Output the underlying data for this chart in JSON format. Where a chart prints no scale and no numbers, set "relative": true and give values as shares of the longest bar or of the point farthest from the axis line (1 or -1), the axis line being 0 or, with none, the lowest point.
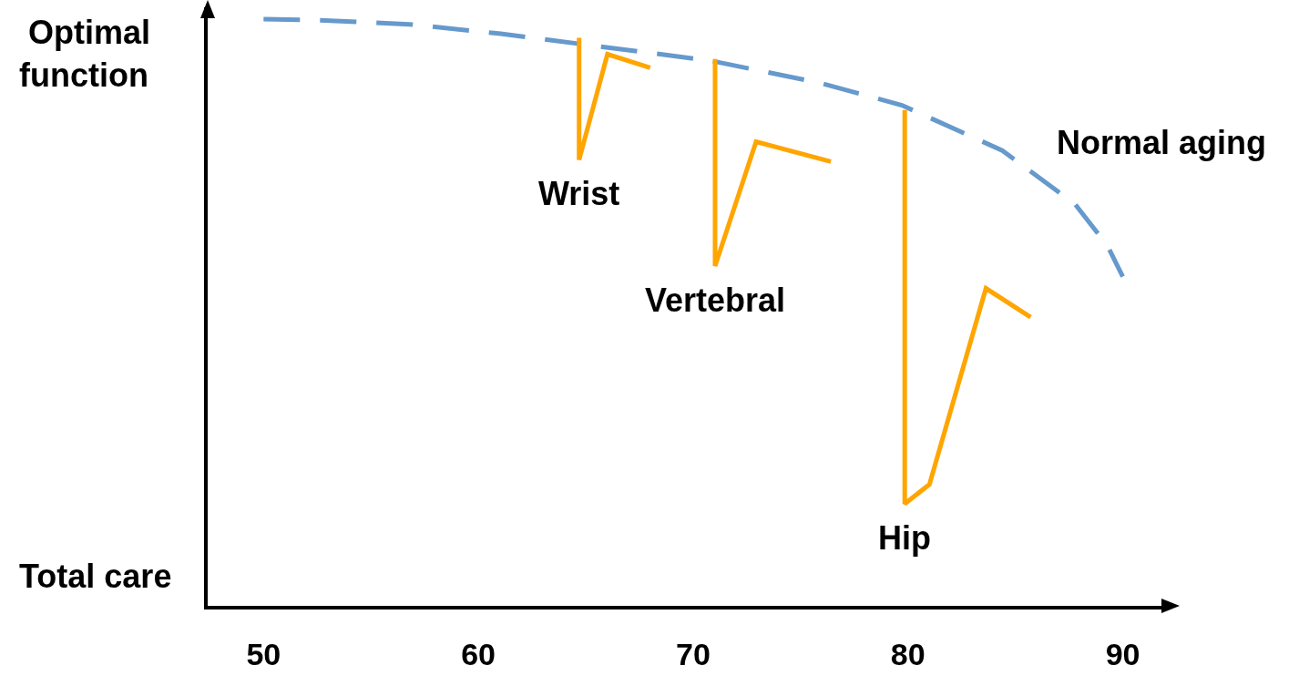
{
  "chart_data": {
    "type": "line",
    "relative": true,
    "xlim": [
      47.4,
      91.8
    ],
    "xticks": [
      50,
      60,
      70,
      80,
      90
    ],
    "grid": false,
    "legend": false,
    "marker": "none",
    "annotations": [
      "Optimal function",
      "Total care"
    ],
    "series": [
      {
        "name": "Normal aging",
        "color": "#6699cc",
        "line_style": "dashed",
        "x": [
          50,
          52.55,
          56.79,
          61.04,
          62.5,
          70.81,
          75.9,
          79.72,
          84.39,
          87.79,
          89.28,
          90
        ],
        "values": [
          1,
          0.998,
          0.991,
          0.975,
          0.968,
          0.929,
          0.891,
          0.853,
          0.776,
          0.684,
          0.614,
          0.561
        ]
      },
      {
        "name": "Wrist",
        "color": "#ffa500",
        "line_style": "solid",
        "x": [
          64.69,
          64.69,
          66.01,
          68.0
        ],
        "values": [
          0.968,
          0.76,
          0.94,
          0.917
        ]
      },
      {
        "name": "Vertebral",
        "color": "#ffa500",
        "line_style": "solid",
        "x": [
          71.02,
          71.02,
          72.93,
          76.41
        ],
        "values": [
          0.932,
          0.579,
          0.791,
          0.757
        ]
      },
      {
        "name": "Hip",
        "color": "#ffa500",
        "line_style": "solid",
        "x": [
          79.85,
          79.85,
          81.0,
          83.63,
          85.71
        ],
        "values": [
          0.845,
          0.174,
          0.207,
          0.541,
          0.492
        ]
      }
    ]
  }
}
